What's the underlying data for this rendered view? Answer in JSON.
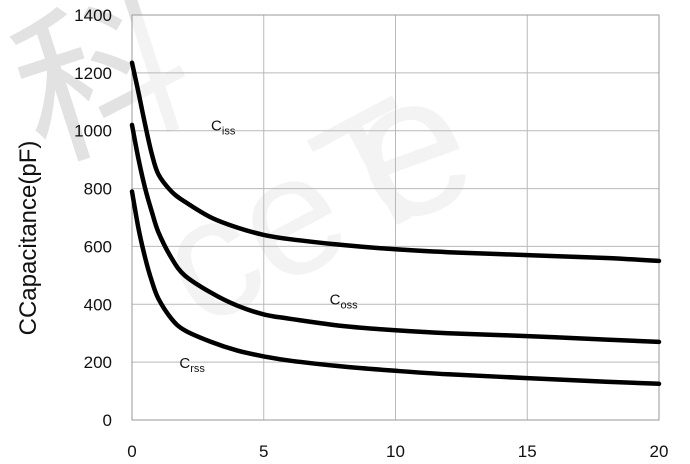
{
  "chart_data": {
    "type": "line",
    "title": "",
    "xlabel": "",
    "ylabel": "CCapacitance(pF)",
    "xlim": [
      0,
      20
    ],
    "ylim": [
      0,
      1400
    ],
    "xticks": [
      0,
      5,
      10,
      15,
      20
    ],
    "yticks": [
      0,
      200,
      400,
      600,
      800,
      1000,
      1200,
      1400
    ],
    "grid": true,
    "legend": "none",
    "series": [
      {
        "name": "Ciss",
        "label_main": "C",
        "label_sub": "iss",
        "label_pos": [
          3.0,
          1000
        ],
        "x": [
          0,
          0.25,
          0.5,
          0.75,
          1,
          1.5,
          2,
          3,
          4,
          5,
          6,
          8,
          10,
          12,
          15,
          18,
          20
        ],
        "y": [
          1235,
          1130,
          1020,
          920,
          850,
          790,
          755,
          700,
          665,
          640,
          625,
          605,
          590,
          580,
          570,
          560,
          550
        ]
      },
      {
        "name": "Coss",
        "label_main": "C",
        "label_sub": "oss",
        "label_pos": [
          7.5,
          400
        ],
        "x": [
          0,
          0.25,
          0.5,
          0.75,
          1,
          1.5,
          2,
          3,
          4,
          5,
          6,
          8,
          10,
          12,
          15,
          18,
          20
        ],
        "y": [
          1020,
          900,
          800,
          720,
          650,
          560,
          500,
          440,
          395,
          365,
          350,
          325,
          310,
          300,
          290,
          278,
          270
        ]
      },
      {
        "name": "Crss",
        "label_main": "C",
        "label_sub": "rss",
        "label_pos": [
          1.8,
          180
        ],
        "x": [
          0,
          0.25,
          0.5,
          0.75,
          1,
          1.5,
          2,
          3,
          4,
          5,
          6,
          8,
          10,
          12,
          15,
          18,
          20
        ],
        "y": [
          790,
          660,
          560,
          480,
          420,
          350,
          310,
          270,
          240,
          220,
          205,
          185,
          170,
          158,
          145,
          132,
          125
        ]
      }
    ]
  }
}
